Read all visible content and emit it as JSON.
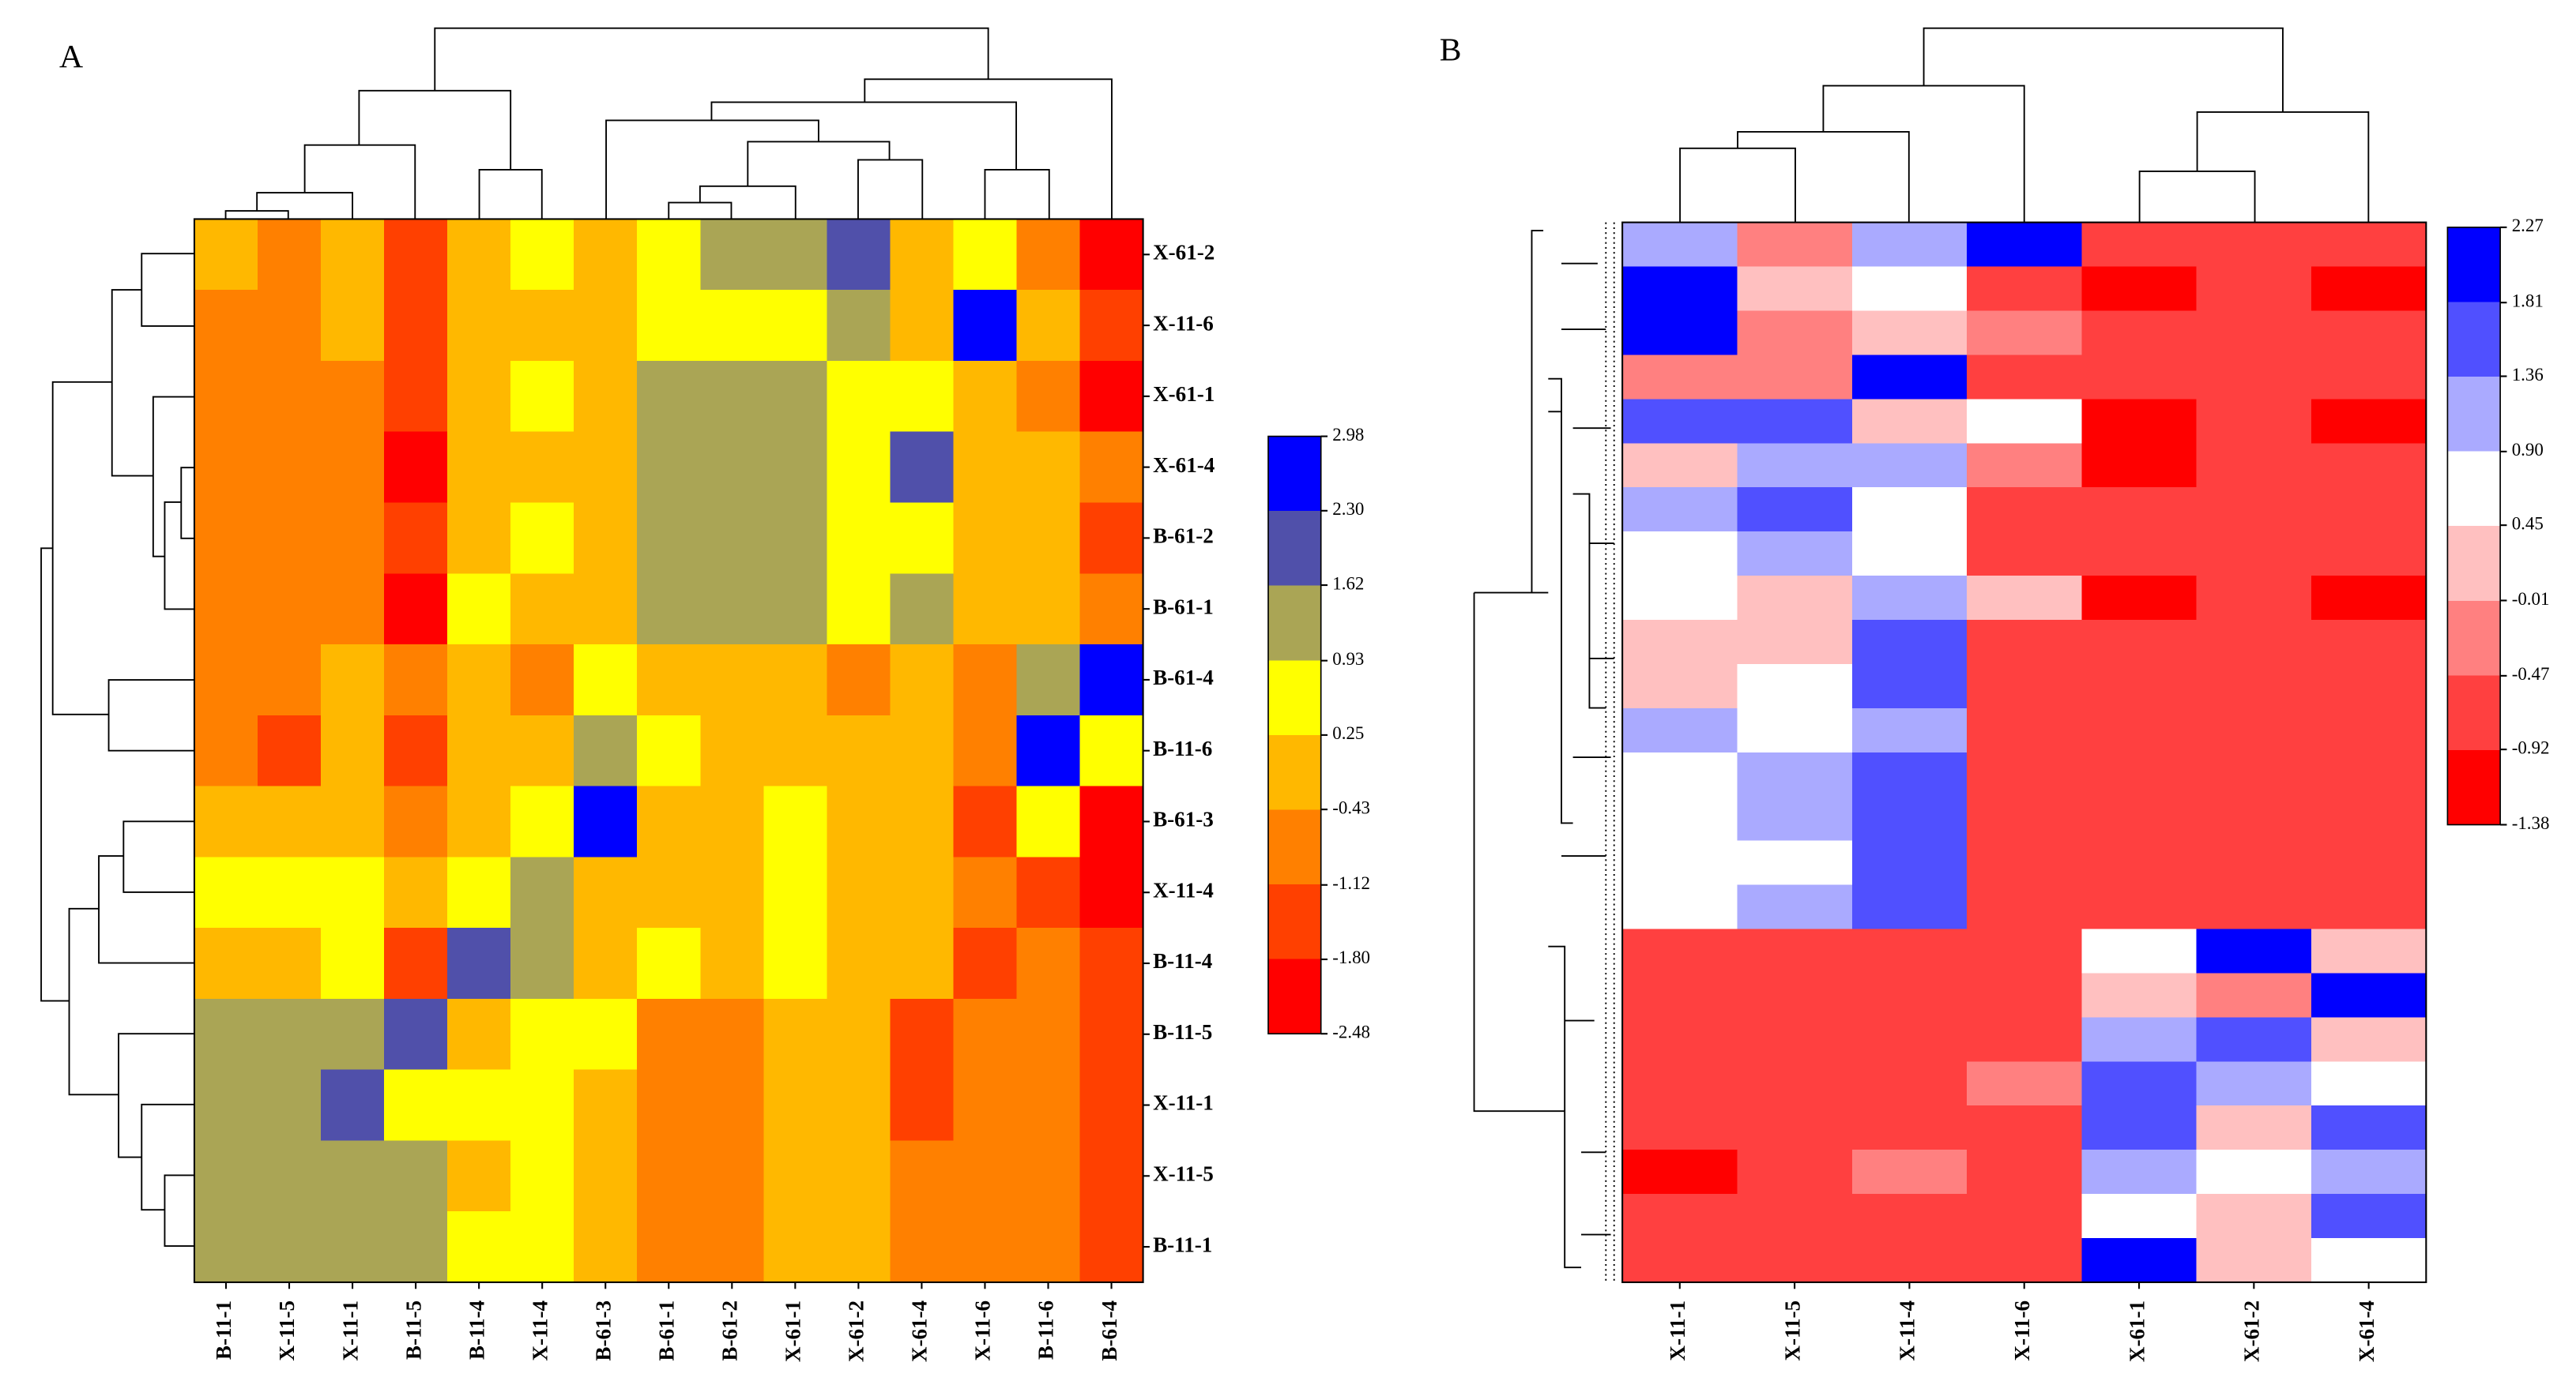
{
  "chart_data": [
    {
      "type": "heatmap",
      "title": "A",
      "rows": [
        "X-61-2",
        "X-11-6",
        "X-61-1",
        "X-61-4",
        "B-61-2",
        "B-61-1",
        "B-61-4",
        "B-11-6",
        "B-61-3",
        "X-11-4",
        "B-11-4",
        "B-11-5",
        "X-11-1",
        "X-11-5",
        "B-11-1"
      ],
      "columns": [
        "B-11-1",
        "X-11-5",
        "X-11-1",
        "B-11-5",
        "B-11-4",
        "X-11-4",
        "B-61-3",
        "B-61-1",
        "B-61-2",
        "X-61-1",
        "X-61-2",
        "X-61-4",
        "X-11-6",
        "B-11-6",
        "B-61-4"
      ],
      "values": [
        [
          -0.09,
          -0.78,
          -0.09,
          -1.46,
          -0.09,
          0.59,
          -0.09,
          0.59,
          1.28,
          1.28,
          1.96,
          -0.09,
          0.59,
          -0.78,
          -2.14
        ],
        [
          -0.78,
          -0.78,
          -0.09,
          -1.46,
          -0.09,
          -0.09,
          -0.09,
          0.59,
          0.59,
          0.59,
          1.28,
          -0.09,
          2.64,
          -0.09,
          -1.46
        ],
        [
          -0.78,
          -0.78,
          -0.78,
          -1.46,
          -0.09,
          0.59,
          -0.09,
          1.28,
          1.28,
          1.28,
          0.59,
          0.59,
          -0.09,
          -0.78,
          -2.14
        ],
        [
          -0.78,
          -0.78,
          -0.78,
          -2.14,
          -0.09,
          -0.09,
          -0.09,
          1.28,
          1.28,
          1.28,
          0.59,
          1.96,
          -0.09,
          -0.09,
          -0.78
        ],
        [
          -0.78,
          -0.78,
          -0.78,
          -1.46,
          -0.09,
          0.59,
          -0.09,
          1.28,
          1.28,
          1.28,
          0.59,
          0.59,
          -0.09,
          -0.09,
          -1.46
        ],
        [
          -0.78,
          -0.78,
          -0.78,
          -2.14,
          0.59,
          -0.09,
          -0.09,
          1.28,
          1.28,
          1.28,
          0.59,
          1.28,
          -0.09,
          -0.09,
          -0.78
        ],
        [
          -0.78,
          -0.78,
          -0.09,
          -0.78,
          -0.09,
          -0.78,
          0.59,
          -0.09,
          -0.09,
          -0.09,
          -0.78,
          -0.09,
          -0.78,
          1.28,
          2.64
        ],
        [
          -0.78,
          -1.46,
          -0.09,
          -1.46,
          -0.09,
          -0.09,
          1.28,
          0.59,
          -0.09,
          -0.09,
          -0.09,
          -0.09,
          -0.78,
          2.64,
          0.59
        ],
        [
          -0.09,
          -0.09,
          -0.09,
          -0.78,
          -0.09,
          0.59,
          2.64,
          -0.09,
          -0.09,
          0.59,
          -0.09,
          -0.09,
          -1.46,
          0.59,
          -2.14
        ],
        [
          0.59,
          0.59,
          0.59,
          -0.09,
          0.59,
          1.28,
          -0.09,
          -0.09,
          -0.09,
          0.59,
          -0.09,
          -0.09,
          -0.78,
          -1.46,
          -2.14
        ],
        [
          -0.09,
          -0.09,
          0.59,
          -1.46,
          1.96,
          1.28,
          -0.09,
          0.59,
          -0.09,
          0.59,
          -0.09,
          -0.09,
          -1.46,
          -0.78,
          -1.46
        ],
        [
          1.28,
          1.28,
          1.28,
          1.96,
          -0.09,
          0.59,
          0.59,
          -0.78,
          -0.78,
          -0.09,
          -0.09,
          -1.46,
          -0.78,
          -0.78,
          -1.46
        ],
        [
          1.28,
          1.28,
          1.96,
          0.59,
          0.59,
          0.59,
          -0.09,
          -0.78,
          -0.78,
          -0.09,
          -0.09,
          -1.46,
          -0.78,
          -0.78,
          -1.46
        ],
        [
          1.28,
          1.28,
          1.28,
          1.28,
          -0.09,
          0.59,
          -0.09,
          -0.78,
          -0.78,
          -0.09,
          -0.09,
          -0.78,
          -0.78,
          -0.78,
          -1.46
        ],
        [
          1.28,
          1.28,
          1.28,
          1.28,
          0.59,
          0.59,
          -0.09,
          -0.78,
          -0.78,
          -0.09,
          -0.09,
          -0.78,
          -0.78,
          -0.78,
          -1.46
        ]
      ],
      "ticks": [
        2.98,
        {
          "value": 2.3,
          "label": "2.30"
        },
        1.62,
        0.93,
        0.25,
        -0.43,
        -1.12,
        {
          "value": -1.8,
          "label": "-1.80"
        },
        -2.48
      ],
      "colors": [
        "#0000ff",
        "#5050aa",
        "#aaa555",
        "#ffff00",
        "#ffb800",
        "#ff8000",
        "#ff4000",
        "#ff0000"
      ]
    },
    {
      "type": "heatmap",
      "title": "B",
      "columns": [
        "X-11-1",
        "X-11-5",
        "X-11-4",
        "X-11-6",
        "X-61-1",
        "X-61-2",
        "X-61-4"
      ],
      "values": [
        [
          1.13,
          -0.24,
          1.13,
          2.04,
          -0.69,
          -0.69,
          -0.69
        ],
        [
          2.04,
          0.22,
          0.67,
          -0.69,
          -1.15,
          -0.69,
          -1.15
        ],
        [
          2.04,
          -0.24,
          0.22,
          -0.24,
          -0.69,
          -0.69,
          -0.69
        ],
        [
          -0.24,
          -0.24,
          2.04,
          -0.69,
          -0.69,
          -0.69,
          -0.69
        ],
        [
          1.58,
          1.58,
          0.22,
          0.67,
          -1.15,
          -0.69,
          -1.15
        ],
        [
          0.22,
          1.13,
          1.13,
          -0.24,
          -1.15,
          -0.69,
          -0.69
        ],
        [
          1.13,
          1.58,
          0.67,
          -0.69,
          -0.69,
          -0.69,
          -0.69
        ],
        [
          0.67,
          1.13,
          0.67,
          -0.69,
          -0.69,
          -0.69,
          -0.69
        ],
        [
          0.67,
          0.22,
          1.13,
          0.22,
          -1.15,
          -0.69,
          -1.15
        ],
        [
          0.22,
          0.22,
          1.58,
          -0.69,
          -0.69,
          -0.69,
          -0.69
        ],
        [
          0.22,
          0.67,
          1.58,
          -0.69,
          -0.69,
          -0.69,
          -0.69
        ],
        [
          1.13,
          0.67,
          1.13,
          -0.69,
          -0.69,
          -0.69,
          -0.69
        ],
        [
          0.67,
          1.13,
          1.58,
          -0.69,
          -0.69,
          -0.69,
          -0.69
        ],
        [
          0.67,
          1.13,
          1.58,
          -0.69,
          -0.69,
          -0.69,
          -0.69
        ],
        [
          0.67,
          0.67,
          1.58,
          -0.69,
          -0.69,
          -0.69,
          -0.69
        ],
        [
          0.67,
          1.13,
          1.58,
          -0.69,
          -0.69,
          -0.69,
          -0.69
        ],
        [
          -0.69,
          -0.69,
          -0.69,
          -0.69,
          0.67,
          2.04,
          0.22
        ],
        [
          -0.69,
          -0.69,
          -0.69,
          -0.69,
          0.22,
          -0.24,
          2.04
        ],
        [
          -0.69,
          -0.69,
          -0.69,
          -0.69,
          1.13,
          1.58,
          0.22
        ],
        [
          -0.69,
          -0.69,
          -0.69,
          -0.24,
          1.58,
          1.13,
          0.67
        ],
        [
          -0.69,
          -0.69,
          -0.69,
          -0.69,
          1.58,
          0.22,
          1.58
        ],
        [
          -1.15,
          -0.69,
          -0.24,
          -0.69,
          1.13,
          0.67,
          1.13
        ],
        [
          -0.69,
          -0.69,
          -0.69,
          -0.69,
          0.67,
          0.22,
          1.58
        ],
        [
          -0.69,
          -0.69,
          -0.69,
          -0.69,
          2.04,
          0.22,
          0.67
        ]
      ],
      "ticks": [
        2.27,
        1.81,
        1.36,
        {
          "value": 0.9,
          "label": "0.90"
        },
        0.45,
        -0.01,
        -0.47,
        -0.92,
        -1.38
      ],
      "colors": [
        "#0000ff",
        "#5050ff",
        "#aaaaff",
        "#ffffff",
        "#ffc0c0",
        "#ff8080",
        "#ff4040",
        "#ff0000"
      ]
    }
  ]
}
